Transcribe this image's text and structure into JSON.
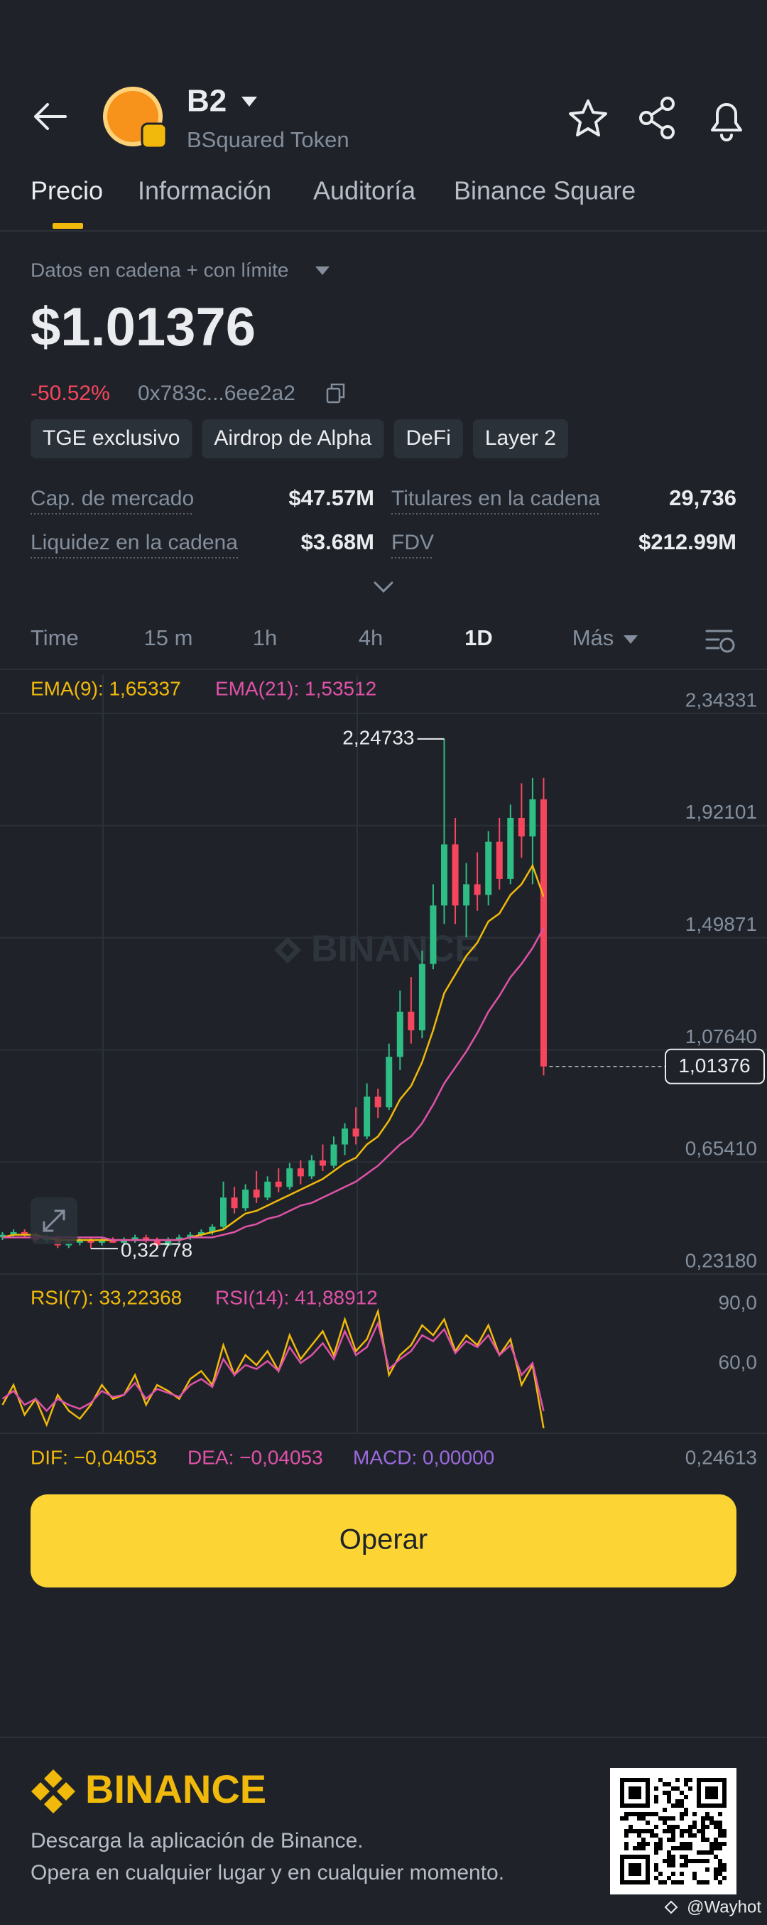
{
  "header": {
    "symbol": "B2",
    "name": "BSquared Token"
  },
  "tabs": [
    "Precio",
    "Información",
    "Auditoría",
    "Binance Square"
  ],
  "price_source": "Datos en cadena + con límite",
  "price": "$1.01376",
  "change": "-50.52%",
  "address": "0x783c...6ee2a2",
  "tags": [
    "TGE exclusivo",
    "Airdrop de Alpha",
    "DeFi",
    "Layer 2"
  ],
  "stats": [
    {
      "label": "Cap. de mercado",
      "value": "$47.57M"
    },
    {
      "label": "Titulares en la cadena",
      "value": "29,736"
    },
    {
      "label": "Liquidez en la cadena",
      "value": "$3.68M"
    },
    {
      "label": "FDV",
      "value": "$212.99M"
    }
  ],
  "intervals": [
    "Time",
    "15 m",
    "1h",
    "4h",
    "1D",
    "Más"
  ],
  "chart_data": [
    {
      "type": "candlestick",
      "watermark": "BINANCE",
      "up_color": "#2ebd85",
      "down_color": "#f6465d",
      "grid": true,
      "ylim": [
        0.2318,
        2.34331
      ],
      "yticks": [
        {
          "value": 2.34331,
          "label": "2,34331"
        },
        {
          "value": 1.92101,
          "label": "1,92101"
        },
        {
          "value": 1.49871,
          "label": "1,49871"
        },
        {
          "value": 1.0764,
          "label": "1,07640"
        },
        {
          "value": 0.6541,
          "label": "0,65410"
        },
        {
          "value": 0.2318,
          "label": "0,23180"
        }
      ],
      "open": [
        0.37,
        0.38,
        0.39,
        0.38,
        0.36,
        0.37,
        0.34,
        0.35,
        0.36,
        0.35,
        0.36,
        0.35,
        0.36,
        0.37,
        0.36,
        0.34,
        0.36,
        0.37,
        0.38,
        0.39,
        0.41,
        0.52,
        0.48,
        0.55,
        0.52,
        0.58,
        0.56,
        0.63,
        0.6,
        0.66,
        0.64,
        0.72,
        0.78,
        0.75,
        0.9,
        0.86,
        1.05,
        1.22,
        1.15,
        1.4,
        1.62,
        1.85,
        1.62,
        1.7,
        1.66,
        1.86,
        1.72,
        1.95,
        1.88,
        2.02
      ],
      "high": [
        0.39,
        0.4,
        0.4,
        0.39,
        0.38,
        0.38,
        0.36,
        0.37,
        0.37,
        0.37,
        0.37,
        0.37,
        0.38,
        0.38,
        0.37,
        0.37,
        0.38,
        0.39,
        0.4,
        0.42,
        0.58,
        0.56,
        0.57,
        0.62,
        0.6,
        0.63,
        0.65,
        0.66,
        0.68,
        0.72,
        0.75,
        0.8,
        0.86,
        0.95,
        0.93,
        1.1,
        1.3,
        1.35,
        1.45,
        1.7,
        2.24733,
        1.95,
        1.78,
        1.82,
        1.9,
        1.95,
        2.0,
        2.08,
        2.1,
        2.1
      ],
      "low": [
        0.36,
        0.37,
        0.37,
        0.35,
        0.35,
        0.33,
        0.33,
        0.34,
        0.32778,
        0.34,
        0.35,
        0.34,
        0.35,
        0.35,
        0.33,
        0.34,
        0.35,
        0.36,
        0.37,
        0.38,
        0.4,
        0.46,
        0.47,
        0.5,
        0.51,
        0.54,
        0.55,
        0.57,
        0.59,
        0.62,
        0.63,
        0.68,
        0.72,
        0.74,
        0.82,
        0.85,
        1.0,
        1.1,
        1.12,
        1.38,
        1.55,
        1.55,
        1.5,
        1.6,
        1.62,
        1.68,
        1.7,
        1.8,
        1.7,
        0.98
      ],
      "close": [
        0.38,
        0.39,
        0.38,
        0.36,
        0.37,
        0.34,
        0.35,
        0.36,
        0.35,
        0.36,
        0.35,
        0.36,
        0.37,
        0.36,
        0.34,
        0.36,
        0.37,
        0.38,
        0.39,
        0.41,
        0.52,
        0.48,
        0.55,
        0.52,
        0.58,
        0.56,
        0.63,
        0.6,
        0.66,
        0.64,
        0.72,
        0.78,
        0.75,
        0.9,
        0.86,
        1.05,
        1.22,
        1.15,
        1.4,
        1.62,
        1.85,
        1.62,
        1.7,
        1.66,
        1.86,
        1.72,
        1.95,
        1.88,
        2.02,
        1.01376
      ],
      "series": [
        {
          "name": "EMA(9): 1,65337",
          "color": "#f0b90b",
          "values": [
            0.37,
            0.38,
            0.38,
            0.38,
            0.37,
            0.36,
            0.36,
            0.36,
            0.36,
            0.36,
            0.36,
            0.36,
            0.36,
            0.36,
            0.36,
            0.36,
            0.36,
            0.37,
            0.38,
            0.39,
            0.4,
            0.43,
            0.46,
            0.47,
            0.49,
            0.51,
            0.53,
            0.55,
            0.57,
            0.59,
            0.62,
            0.65,
            0.67,
            0.72,
            0.75,
            0.81,
            0.89,
            0.94,
            1.03,
            1.15,
            1.29,
            1.36,
            1.43,
            1.48,
            1.56,
            1.59,
            1.66,
            1.7,
            1.77,
            1.65337
          ]
        },
        {
          "name": "EMA(21): 1,53512",
          "color": "#e052a8",
          "values": [
            0.37,
            0.37,
            0.37,
            0.37,
            0.37,
            0.37,
            0.37,
            0.37,
            0.37,
            0.37,
            0.36,
            0.36,
            0.36,
            0.36,
            0.36,
            0.36,
            0.36,
            0.37,
            0.37,
            0.37,
            0.38,
            0.39,
            0.41,
            0.42,
            0.44,
            0.45,
            0.47,
            0.49,
            0.5,
            0.52,
            0.54,
            0.56,
            0.58,
            0.61,
            0.64,
            0.68,
            0.72,
            0.75,
            0.8,
            0.87,
            0.95,
            1.01,
            1.07,
            1.14,
            1.22,
            1.28,
            1.35,
            1.4,
            1.46,
            1.53512
          ]
        }
      ],
      "max_label": {
        "value": 2.24733,
        "label": "2,24733"
      },
      "min_label": {
        "value": 0.32778,
        "label": "0,32778"
      },
      "last_price": {
        "value": 1.01376,
        "label": "1,01376"
      }
    },
    {
      "type": "line",
      "grid": false,
      "ylim": [
        30,
        108
      ],
      "yticks": [
        {
          "value": 90,
          "label": "90,0"
        },
        {
          "value": 60,
          "label": "60,0"
        }
      ],
      "series": [
        {
          "name": "RSI(7): 33,22368",
          "color": "#f0b90b",
          "values": [
            45,
            55,
            40,
            48,
            35,
            50,
            42,
            38,
            45,
            55,
            48,
            50,
            60,
            45,
            55,
            52,
            48,
            58,
            62,
            55,
            75,
            60,
            70,
            65,
            72,
            62,
            80,
            68,
            75,
            82,
            70,
            88,
            72,
            78,
            92,
            60,
            70,
            75,
            85,
            80,
            88,
            72,
            80,
            75,
            85,
            70,
            78,
            55,
            65,
            33.22368
          ]
        },
        {
          "name": "RSI(14): 41,88912",
          "color": "#e052a8",
          "values": [
            48,
            52,
            45,
            48,
            42,
            48,
            45,
            43,
            46,
            52,
            49,
            50,
            56,
            48,
            53,
            51,
            49,
            55,
            58,
            54,
            68,
            60,
            65,
            63,
            67,
            62,
            74,
            66,
            70,
            76,
            68,
            82,
            70,
            74,
            86,
            63,
            68,
            72,
            80,
            77,
            83,
            71,
            77,
            74,
            80,
            70,
            75,
            60,
            66,
            41.88912
          ]
        }
      ]
    }
  ],
  "macd": {
    "dif": "DIF: −0,04053",
    "dea": "DEA: −0,04053",
    "macd": "MACD: 0,00000",
    "axis_label": "0,24613"
  },
  "button": "Operar",
  "footer": {
    "brand": "BINANCE",
    "line1": "Descarga la aplicación de Binance.",
    "line2": "Opera en cualquier lugar y en cualquier momento.",
    "credit": "@Wayhot"
  }
}
